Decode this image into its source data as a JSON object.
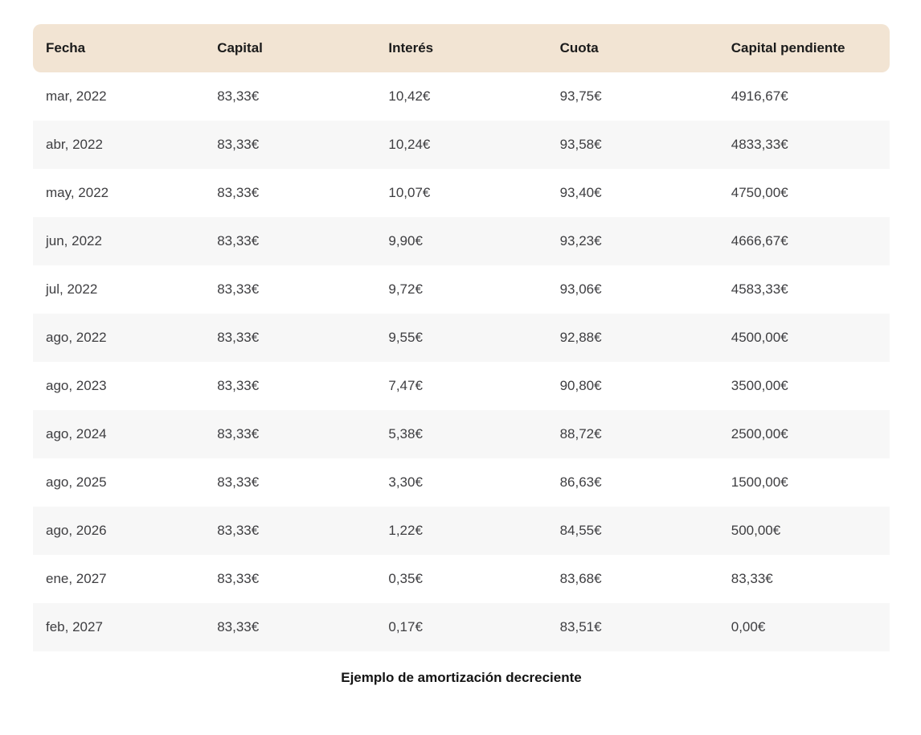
{
  "chart_data": {
    "type": "table",
    "title": "Ejemplo de amortización decreciente",
    "columns": [
      "Fecha",
      "Capital",
      "Interés",
      "Cuota",
      "Capital pendiente"
    ],
    "rows": [
      [
        "mar, 2022",
        "83,33€",
        "10,42€",
        "93,75€",
        "4916,67€"
      ],
      [
        "abr, 2022",
        "83,33€",
        "10,24€",
        "93,58€",
        "4833,33€"
      ],
      [
        "may, 2022",
        "83,33€",
        "10,07€",
        "93,40€",
        "4750,00€"
      ],
      [
        "jun, 2022",
        "83,33€",
        "9,90€",
        "93,23€",
        "4666,67€"
      ],
      [
        "jul, 2022",
        "83,33€",
        "9,72€",
        "93,06€",
        "4583,33€"
      ],
      [
        "ago, 2022",
        "83,33€",
        "9,55€",
        "92,88€",
        "4500,00€"
      ],
      [
        "ago, 2023",
        "83,33€",
        "7,47€",
        "90,80€",
        "3500,00€"
      ],
      [
        "ago, 2024",
        "83,33€",
        "5,38€",
        "88,72€",
        "2500,00€"
      ],
      [
        "ago, 2025",
        "83,33€",
        "3,30€",
        "86,63€",
        "1500,00€"
      ],
      [
        "ago, 2026",
        "83,33€",
        "1,22€",
        "84,55€",
        "500,00€"
      ],
      [
        "ene, 2027",
        "83,33€",
        "0,35€",
        "83,68€",
        "83,33€"
      ],
      [
        "feb, 2027",
        "83,33€",
        "0,17€",
        "83,51€",
        "0,00€"
      ]
    ],
    "layout": {
      "grid": false,
      "row_striping": "even rows shaded",
      "caption_position": "bottom-center"
    }
  },
  "colors": {
    "header_bg": "#f2e4d3",
    "row_alt_bg": "#f7f7f7",
    "row_bg": "#ffffff",
    "header_text": "#1b1b1b",
    "cell_text": "#3e3e41",
    "caption_text": "#141414"
  }
}
